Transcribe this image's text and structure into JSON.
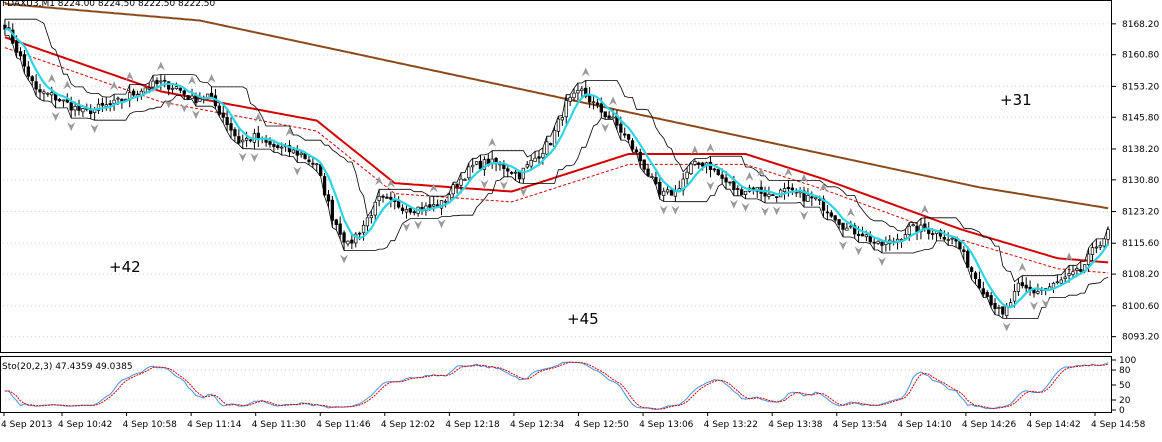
{
  "chart_data": [
    {
      "type": "candlestick",
      "title": "FDAXU3,M1  8224.00 8224.50 8222.50 8222.50",
      "symbol": "FDAXU3",
      "timeframe": "M1",
      "ylim": [
        8090.0,
        8172.0
      ],
      "yticks": [
        "8168.20",
        "8160.80",
        "8153.20",
        "8145.80",
        "8138.20",
        "8130.80",
        "8123.20",
        "8115.60",
        "8108.20",
        "8100.60",
        "8093.20"
      ],
      "xticks": [
        "4 Sep 2013",
        "4 Sep 10:42",
        "4 Sep 10:58",
        "4 Sep 11:14",
        "4 Sep 11:30",
        "4 Sep 11:46",
        "4 Sep 12:02",
        "4 Sep 12:18",
        "4 Sep 12:34",
        "4 Sep 12:50",
        "4 Sep 13:06",
        "4 Sep 13:22",
        "4 Sep 13:38",
        "4 Sep 13:54",
        "4 Sep 14:10",
        "4 Sep 14:26",
        "4 Sep 14:42",
        "4 Sep 14:58"
      ],
      "annotations": [
        "+42",
        "+45",
        "+31"
      ],
      "anchors": [
        [
          0,
          8168
        ],
        [
          4,
          8160
        ],
        [
          8,
          8152
        ],
        [
          12,
          8151
        ],
        [
          16,
          8149
        ],
        [
          20,
          8147
        ],
        [
          24,
          8148
        ],
        [
          28,
          8149
        ],
        [
          32,
          8151
        ],
        [
          36,
          8153
        ],
        [
          40,
          8154
        ],
        [
          44,
          8153
        ],
        [
          48,
          8150
        ],
        [
          52,
          8151
        ],
        [
          56,
          8146
        ],
        [
          60,
          8140
        ],
        [
          64,
          8141
        ],
        [
          68,
          8139
        ],
        [
          72,
          8138
        ],
        [
          76,
          8137
        ],
        [
          80,
          8134
        ],
        [
          84,
          8122
        ],
        [
          88,
          8115
        ],
        [
          92,
          8120
        ],
        [
          96,
          8126
        ],
        [
          100,
          8125
        ],
        [
          104,
          8124
        ],
        [
          108,
          8124
        ],
        [
          112,
          8125
        ],
        [
          116,
          8130
        ],
        [
          120,
          8134
        ],
        [
          124,
          8135
        ],
        [
          128,
          8134
        ],
        [
          132,
          8132
        ],
        [
          136,
          8136
        ],
        [
          140,
          8140
        ],
        [
          144,
          8149
        ],
        [
          148,
          8152
        ],
        [
          152,
          8148
        ],
        [
          156,
          8145
        ],
        [
          160,
          8140
        ],
        [
          164,
          8134
        ],
        [
          168,
          8127
        ],
        [
          172,
          8128
        ],
        [
          176,
          8134
        ],
        [
          180,
          8135
        ],
        [
          184,
          8131
        ],
        [
          188,
          8128
        ],
        [
          192,
          8129
        ],
        [
          196,
          8127
        ],
        [
          200,
          8128
        ],
        [
          204,
          8127
        ],
        [
          208,
          8126
        ],
        [
          212,
          8123
        ],
        [
          216,
          8119
        ],
        [
          220,
          8118
        ],
        [
          224,
          8115
        ],
        [
          228,
          8116
        ],
        [
          232,
          8119
        ],
        [
          236,
          8119
        ],
        [
          240,
          8118
        ],
        [
          244,
          8116
        ],
        [
          248,
          8109
        ],
        [
          252,
          8103
        ],
        [
          256,
          8098
        ],
        [
          260,
          8105
        ],
        [
          264,
          8104
        ],
        [
          268,
          8105
        ],
        [
          272,
          8107
        ],
        [
          276,
          8109
        ],
        [
          280,
          8115
        ],
        [
          283,
          8118
        ]
      ],
      "series": [
        {
          "color": "#d40000",
          "role": "slow moving average",
          "values": [
            [
              0,
              8165
            ],
            [
              40,
              8152
            ],
            [
              80,
              8145
            ],
            [
              100,
              8130
            ],
            [
              130,
              8128
            ],
            [
              160,
              8137
            ],
            [
              190,
              8137
            ],
            [
              210,
              8131
            ],
            [
              245,
              8119
            ],
            [
              270,
              8112
            ],
            [
              283,
              8111
            ]
          ]
        },
        {
          "color": "#8b4a1a",
          "role": "long moving average",
          "values": [
            [
              0,
              8173
            ],
            [
              50,
              8169
            ],
            [
              100,
              8159
            ],
            [
              150,
              8149
            ],
            [
              200,
              8139
            ],
            [
              250,
              8129
            ],
            [
              283,
              8124
            ]
          ]
        }
      ],
      "subchart": {
        "type": "line",
        "label": "Sto(20,2,3) 47.4359 49.0385",
        "indicator": "Sto(20,2,3)",
        "values_shown": [
          47.4359,
          49.0385
        ],
        "ylim": [
          0,
          100
        ],
        "yticks": [
          "100",
          "80",
          "50",
          "20",
          "0"
        ],
        "levels": [
          20,
          80
        ],
        "colors": [
          "#4a90e2",
          "#d40000"
        ]
      }
    }
  ]
}
